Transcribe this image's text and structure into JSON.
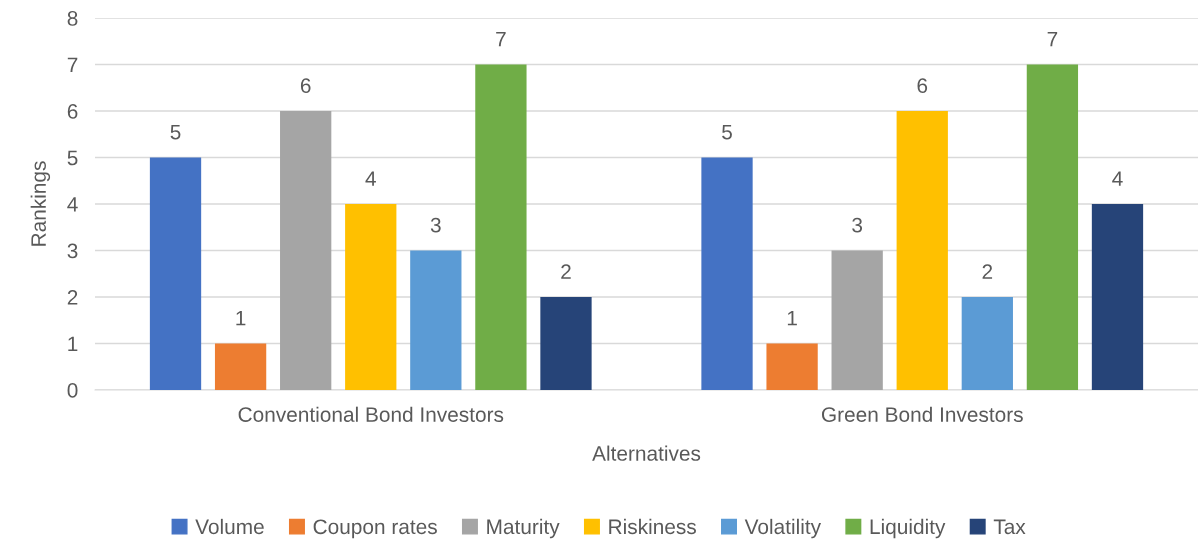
{
  "chart_data": {
    "type": "bar",
    "xlabel": "Alternatives",
    "ylabel": "Rankings",
    "categories": [
      "Conventional Bond Investors",
      "Green Bond Investors"
    ],
    "series": [
      {
        "name": "Volume",
        "color": "#4472c4",
        "values": [
          5,
          5
        ]
      },
      {
        "name": "Coupon rates",
        "color": "#ed7d31",
        "values": [
          1,
          1
        ]
      },
      {
        "name": "Maturity",
        "color": "#a5a5a5",
        "values": [
          6,
          3
        ]
      },
      {
        "name": "Riskiness",
        "color": "#ffc000",
        "values": [
          4,
          6
        ]
      },
      {
        "name": "Volatility",
        "color": "#5b9bd5",
        "values": [
          3,
          2
        ]
      },
      {
        "name": "Liquidity",
        "color": "#70ad47",
        "values": [
          7,
          7
        ]
      },
      {
        "name": "Tax",
        "color": "#264478",
        "values": [
          2,
          4
        ]
      }
    ],
    "ylim": [
      0,
      8
    ],
    "yticks": [
      0,
      1,
      2,
      3,
      4,
      5,
      6,
      7,
      8
    ],
    "grid": "y",
    "legend": "bottom",
    "data_labels": true
  }
}
